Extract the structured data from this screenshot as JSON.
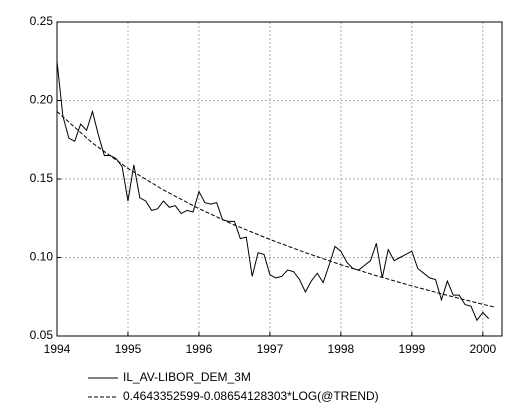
{
  "chart_data": {
    "type": "line",
    "series": [
      {
        "name": "IL_AV-LIBOR_DEM_3M",
        "color": "#000000",
        "line_style": "solid",
        "x": [
          1994,
          1994.083,
          1994.167,
          1994.25,
          1994.333,
          1994.417,
          1994.5,
          1994.583,
          1994.667,
          1994.75,
          1994.833,
          1994.917,
          1995,
          1995.083,
          1995.167,
          1995.25,
          1995.333,
          1995.417,
          1995.5,
          1995.583,
          1995.667,
          1995.75,
          1995.833,
          1995.917,
          1996,
          1996.083,
          1996.167,
          1996.25,
          1996.333,
          1996.417,
          1996.5,
          1996.583,
          1996.667,
          1996.75,
          1996.833,
          1996.917,
          1997,
          1997.083,
          1997.167,
          1997.25,
          1997.333,
          1997.417,
          1997.5,
          1997.583,
          1997.667,
          1997.75,
          1997.833,
          1997.917,
          1998,
          1998.083,
          1998.167,
          1998.25,
          1998.333,
          1998.417,
          1998.5,
          1998.583,
          1998.667,
          1998.75,
          1998.833,
          1998.917,
          1999,
          1999.083,
          1999.167,
          1999.25,
          1999.333,
          1999.417,
          1999.5,
          1999.583,
          1999.667,
          1999.75,
          1999.833,
          1999.917,
          2000,
          2000.083
        ],
        "values": [
          0.225,
          0.19,
          0.176,
          0.174,
          0.185,
          0.181,
          0.193,
          0.178,
          0.165,
          0.165,
          0.163,
          0.158,
          0.136,
          0.159,
          0.138,
          0.136,
          0.13,
          0.131,
          0.136,
          0.132,
          0.133,
          0.128,
          0.13,
          0.129,
          0.142,
          0.135,
          0.134,
          0.135,
          0.124,
          0.123,
          0.123,
          0.112,
          0.113,
          0.088,
          0.103,
          0.102,
          0.089,
          0.087,
          0.088,
          0.092,
          0.091,
          0.086,
          0.078,
          0.085,
          0.09,
          0.084,
          0.095,
          0.107,
          0.104,
          0.097,
          0.093,
          0.092,
          0.095,
          0.098,
          0.109,
          0.087,
          0.105,
          0.098,
          0.1,
          0.102,
          0.104,
          0.093,
          0.09,
          0.087,
          0.086,
          0.073,
          0.085,
          0.076,
          0.076,
          0.07,
          0.069,
          0.06,
          0.065,
          0.061
        ]
      },
      {
        "name": "0.4643352599-0.08654128303*LOG(@TREND)",
        "color": "#000000",
        "line_style": "dashed",
        "x": [
          1994,
          1994.5,
          1995,
          1995.5,
          1996,
          1996.5,
          1997,
          1997.5,
          1998,
          1998.5,
          1999,
          1999.5,
          2000,
          2000.167
        ],
        "values": [
          0.193,
          0.1729,
          0.1567,
          0.143,
          0.1311,
          0.1207,
          0.1115,
          0.1031,
          0.0954,
          0.0884,
          0.0819,
          0.0759,
          0.0702,
          0.0684
        ]
      }
    ],
    "xlim": [
      1994,
      2000.27
    ],
    "xticks": [
      1994,
      1995,
      1996,
      1997,
      1998,
      1999,
      2000
    ],
    "ylim": [
      0.05,
      0.25
    ],
    "yticks": [
      0.05,
      {
        "value": 0.1,
        "label": "0.10"
      },
      0.15,
      {
        "value": 0.2,
        "label": "0.20"
      },
      0.25
    ],
    "grid": true
  }
}
